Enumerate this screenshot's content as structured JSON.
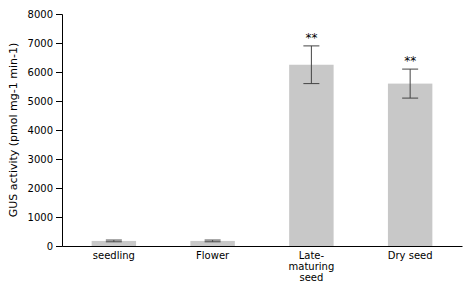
{
  "chart_data": {
    "type": "bar",
    "categories": [
      "seedling",
      "Flower",
      "Late-\nmaturing\nseed",
      "Dry seed"
    ],
    "values": [
      175,
      175,
      6250,
      5600
    ],
    "errors": [
      30,
      30,
      650,
      500
    ],
    "color": "#c8c8c8",
    "ylabel": "GUS activity (pmol mg-1 min-1)",
    "ylim": [
      0,
      8000
    ],
    "yticks": [
      0,
      1000,
      2000,
      3000,
      4000,
      5000,
      6000,
      7000,
      8000
    ],
    "annotations": [
      {
        "x": "Late-\nmaturing\nseed",
        "text": "**"
      },
      {
        "x": "Dry seed",
        "text": "**"
      }
    ]
  }
}
